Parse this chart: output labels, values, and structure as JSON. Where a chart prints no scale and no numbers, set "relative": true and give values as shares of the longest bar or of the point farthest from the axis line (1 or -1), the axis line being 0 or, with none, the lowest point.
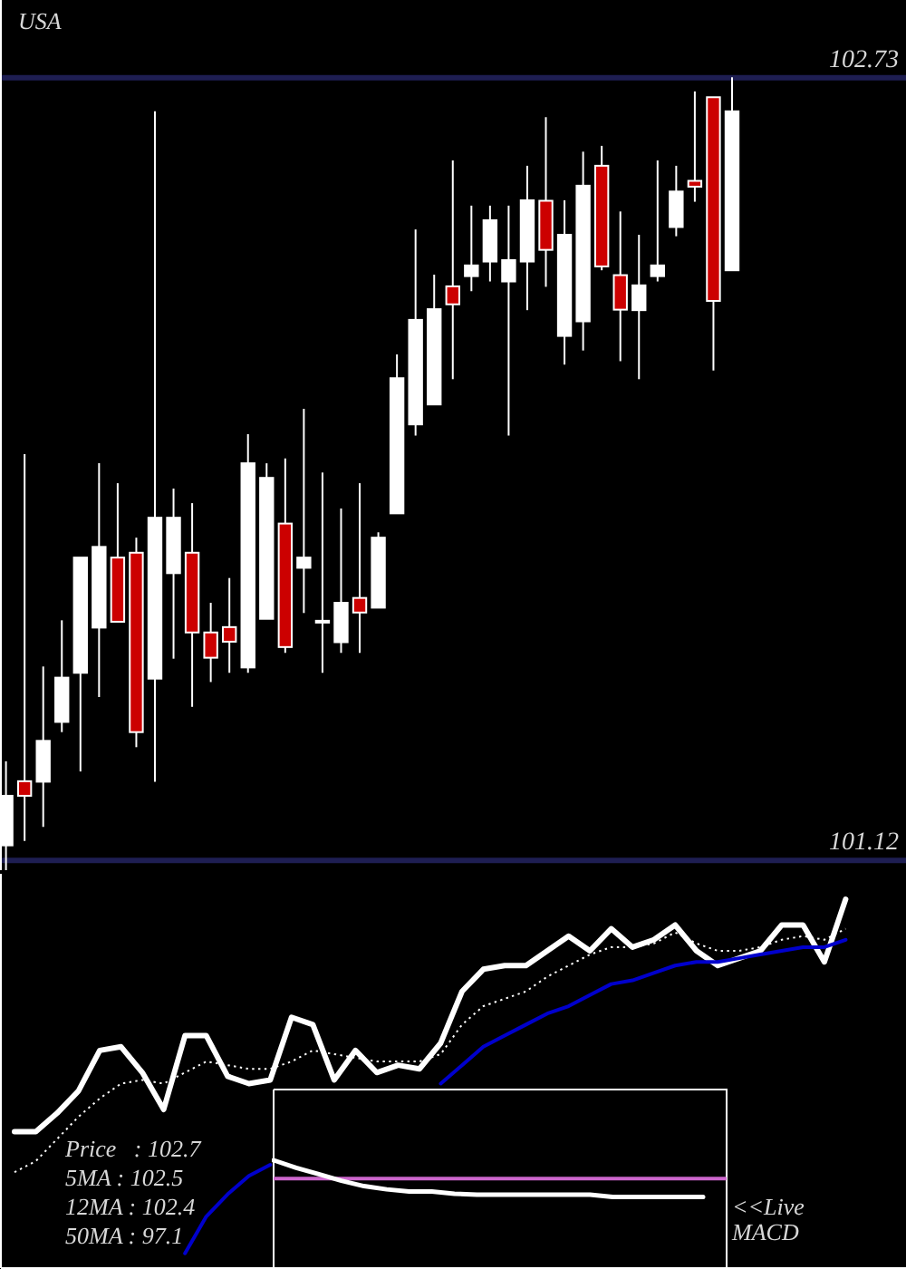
{
  "chart_data": [
    {
      "type": "candlestick",
      "title": "USA",
      "categories": [
        null,
        null,
        null,
        null,
        null,
        null,
        null,
        null,
        null,
        null,
        null,
        null,
        null,
        null,
        null,
        null,
        null,
        null,
        null,
        null,
        null,
        null,
        null,
        null,
        null,
        null,
        null,
        null,
        null,
        null,
        null,
        null,
        null,
        null,
        null,
        null,
        null,
        null,
        null,
        null
      ],
      "ohlc": [
        [
          101.151,
          101.324,
          101.1,
          101.253
        ],
        [
          101.283,
          101.956,
          101.16,
          101.253
        ],
        [
          101.282,
          101.519,
          101.189,
          101.366
        ],
        [
          101.405,
          101.614,
          101.384,
          101.496
        ],
        [
          101.506,
          101.743,
          101.303,
          101.743
        ],
        [
          101.599,
          101.937,
          101.456,
          101.765
        ],
        [
          101.743,
          101.896,
          101.611,
          101.611
        ],
        [
          101.753,
          101.784,
          101.353,
          101.384
        ],
        [
          101.494,
          102.661,
          101.282,
          101.825
        ],
        [
          101.711,
          101.885,
          101.535,
          101.825
        ],
        [
          101.753,
          101.855,
          101.436,
          101.589
        ],
        [
          101.589,
          101.65,
          101.487,
          101.537
        ],
        [
          101.6,
          101.701,
          101.506,
          101.57
        ],
        [
          101.517,
          101.997,
          101.506,
          101.937
        ],
        [
          101.617,
          101.937,
          101.617,
          101.907
        ],
        [
          101.813,
          101.947,
          101.547,
          101.559
        ],
        [
          101.722,
          102.049,
          101.629,
          101.743
        ],
        [
          101.61,
          101.918,
          101.506,
          101.613
        ],
        [
          101.569,
          101.844,
          101.547,
          101.65
        ],
        [
          101.66,
          101.896,
          101.547,
          101.63
        ],
        [
          101.64,
          101.795,
          101.64,
          101.784
        ],
        [
          101.834,
          102.161,
          101.834,
          102.112
        ],
        [
          102.017,
          102.418,
          101.994,
          102.232
        ],
        [
          102.058,
          102.325,
          102.058,
          102.254
        ],
        [
          102.301,
          102.56,
          102.11,
          102.264
        ],
        [
          102.322,
          102.467,
          102.291,
          102.344
        ],
        [
          102.352,
          102.467,
          102.311,
          102.437
        ],
        [
          102.311,
          102.467,
          101.994,
          102.355
        ],
        [
          102.352,
          102.549,
          102.252,
          102.478
        ],
        [
          102.477,
          102.649,
          102.3,
          102.376
        ],
        [
          102.199,
          102.478,
          102.14,
          102.407
        ],
        [
          102.229,
          102.578,
          102.169,
          102.508
        ],
        [
          102.549,
          102.59,
          102.334,
          102.342
        ],
        [
          102.324,
          102.455,
          102.147,
          102.253
        ],
        [
          102.252,
          102.407,
          102.11,
          102.303
        ],
        [
          102.322,
          102.56,
          102.311,
          102.344
        ],
        [
          102.423,
          102.549,
          102.404,
          102.496
        ],
        [
          102.518,
          102.702,
          102.475,
          102.506
        ],
        [
          102.69,
          102.69,
          102.128,
          102.271
        ],
        [
          102.334,
          102.731,
          102.334,
          102.661
        ]
      ],
      "colors": [
        "#ffffff",
        "#cc0000",
        "#ffffff",
        "#ffffff",
        "#ffffff",
        "#ffffff",
        "#cc0000",
        "#cc0000",
        "#ffffff",
        "#ffffff",
        "#cc0000",
        "#cc0000",
        "#cc0000",
        "#ffffff",
        "#ffffff",
        "#cc0000",
        "#ffffff",
        "#ffffff",
        "#ffffff",
        "#cc0000",
        "#ffffff",
        "#ffffff",
        "#ffffff",
        "#ffffff",
        "#cc0000",
        "#ffffff",
        "#ffffff",
        "#ffffff",
        "#ffffff",
        "#cc0000",
        "#ffffff",
        "#ffffff",
        "#cc0000",
        "#cc0000",
        "#ffffff",
        "#ffffff",
        "#ffffff",
        "#cc0000",
        "#cc0000",
        "#ffffff"
      ],
      "ylim": [
        101.1,
        102.89
      ],
      "yticks": [
        101.12,
        102.73
      ],
      "grid": "y"
    },
    {
      "type": "line",
      "relative": true,
      "categories": [
        null,
        null,
        null,
        null,
        null,
        null,
        null,
        null,
        null,
        null,
        null,
        null,
        null,
        null,
        null,
        null,
        null,
        null,
        null,
        null,
        null,
        null,
        null,
        null,
        null,
        null,
        null,
        null,
        null,
        null,
        null,
        null,
        null,
        null,
        null,
        null,
        null,
        null,
        null,
        null
      ],
      "series": [
        {
          "color": "#ffffff",
          "line_style": "solid",
          "values": [
            0.37,
            0.37,
            0.42,
            0.48,
            0.59,
            0.6,
            0.53,
            0.43,
            0.63,
            0.63,
            0.52,
            0.5,
            0.51,
            0.68,
            0.66,
            0.51,
            0.59,
            0.53,
            0.55,
            0.54,
            0.61,
            0.75,
            0.81,
            0.82,
            0.82,
            0.86,
            0.9,
            0.86,
            0.92,
            0.87,
            0.89,
            0.93,
            0.86,
            0.82,
            0.84,
            0.86,
            0.93,
            0.93,
            0.83,
            1.0
          ]
        },
        {
          "color": "#ffffff",
          "line_style": "dotted",
          "values": [
            0.26,
            0.29,
            0.35,
            0.41,
            0.46,
            0.5,
            0.51,
            0.5,
            0.53,
            0.56,
            0.55,
            0.54,
            0.54,
            0.56,
            0.59,
            0.58,
            0.57,
            0.56,
            0.56,
            0.56,
            0.58,
            0.66,
            0.71,
            0.73,
            0.75,
            0.79,
            0.82,
            0.85,
            0.87,
            0.87,
            0.88,
            0.91,
            0.88,
            0.86,
            0.86,
            0.87,
            0.89,
            0.9,
            0.89,
            0.92
          ]
        },
        {
          "color": "#0000cc",
          "line_style": "solid",
          "values": [
            null,
            null,
            null,
            null,
            null,
            null,
            null,
            null,
            0.04,
            0.14,
            0.2,
            0.25,
            0.28,
            null,
            null,
            null,
            null,
            null,
            null,
            null,
            0.5,
            0.55,
            0.6,
            0.63,
            0.66,
            0.69,
            0.71,
            0.74,
            0.77,
            0.78,
            0.8,
            0.82,
            0.83,
            0.83,
            0.84,
            0.85,
            0.86,
            0.87,
            0.87,
            0.89
          ]
        }
      ],
      "annotations": [
        "Price   : 102.7",
        "5MA : 102.5",
        "12MA : 102.4",
        "50MA : 97.1"
      ]
    },
    {
      "type": "line",
      "relative": true,
      "categories": [
        null,
        null,
        null,
        null,
        null,
        null,
        null,
        null,
        null,
        null,
        null,
        null,
        null,
        null,
        null,
        null,
        null,
        null,
        null,
        null
      ],
      "series": [
        {
          "color": "#ffffff",
          "values": [
            1.0,
            0.93,
            0.87,
            0.81,
            0.76,
            0.73,
            0.71,
            0.71,
            0.69,
            0.68,
            0.68,
            0.68,
            0.68,
            0.68,
            0.68,
            0.66,
            0.66,
            0.66,
            0.66,
            0.66
          ]
        }
      ],
      "ref_lines": [
        {
          "axis": "y",
          "value": 0.83,
          "color": "#cc66cc"
        }
      ],
      "annotations": [
        "<<Live MACD"
      ]
    }
  ]
}
